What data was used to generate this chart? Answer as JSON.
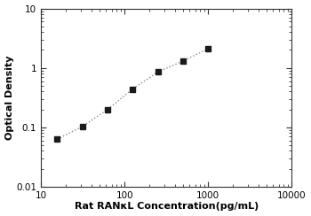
{
  "x_values": [
    15.625,
    31.25,
    62.5,
    125,
    250,
    500,
    1000
  ],
  "y_values": [
    0.063,
    0.103,
    0.198,
    0.44,
    0.85,
    1.3,
    2.1
  ],
  "xlabel": "Rat RANκL Concentration(pg/mL)",
  "ylabel": "Optical Density",
  "xlim": [
    10,
    10000
  ],
  "ylim": [
    0.01,
    10
  ],
  "xticks": [
    10,
    100,
    1000,
    10000
  ],
  "yticks": [
    0.01,
    0.1,
    1,
    10
  ],
  "ytick_labels": [
    "0.01",
    "0.1",
    "1",
    "10"
  ],
  "xtick_labels": [
    "10",
    "100",
    "1000",
    "10000"
  ],
  "marker": "s",
  "marker_color": "#1a1a1a",
  "marker_size": 5,
  "line_color": "#888888",
  "line_style": ":",
  "line_width": 1.0,
  "bg_color": "#ffffff",
  "font_size_label": 8,
  "font_size_tick": 7.5
}
